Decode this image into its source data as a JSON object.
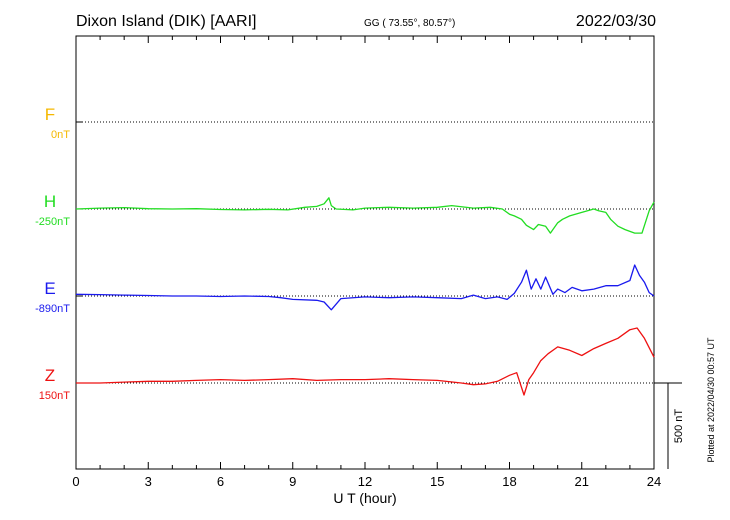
{
  "header": {
    "station": "Dixon Island (DIK)  [AARI]",
    "coords": "GG ( 73.55°,  80.57°)",
    "date": "2022/03/30"
  },
  "footer": {
    "plotted": "Plotted at 2022/04/30 00:57 UT"
  },
  "chart_data": {
    "type": "line",
    "xlabel": "U T (hour)",
    "xlim": [
      0,
      24
    ],
    "x_ticks": [
      "0",
      "3",
      "6",
      "9",
      "12",
      "15",
      "18",
      "21",
      "24"
    ],
    "scale_bar": {
      "label": "500 nT",
      "value_nT": 500
    },
    "series": [
      {
        "name": "F",
        "baseline_label": "0nT",
        "color": "#f5b800",
        "x": [],
        "values": []
      },
      {
        "name": "H",
        "baseline_label": "-250nT",
        "color": "#22dd22",
        "x": [
          0,
          1,
          2,
          3,
          4,
          5,
          6,
          7,
          8,
          8.8,
          9.5,
          10,
          10.3,
          10.5,
          10.6,
          10.8,
          11.5,
          12,
          13,
          14,
          15,
          15.6,
          16.5,
          17.2,
          17.7,
          18,
          18.2,
          18.5,
          18.7,
          19,
          19.2,
          19.5,
          19.7,
          20,
          20.2,
          20.5,
          21,
          21.5,
          21.7,
          22,
          22.2,
          22.5,
          22.8,
          23,
          23.2,
          23.5,
          23.8,
          24
        ],
        "values": [
          0,
          5,
          8,
          2,
          0,
          2,
          -3,
          -5,
          -2,
          -5,
          10,
          15,
          30,
          65,
          20,
          0,
          -5,
          5,
          10,
          5,
          10,
          20,
          5,
          10,
          0,
          -30,
          -40,
          -60,
          -95,
          -120,
          -90,
          -100,
          -140,
          -80,
          -60,
          -40,
          -20,
          0,
          -10,
          -20,
          -60,
          -100,
          -120,
          -130,
          -140,
          -140,
          -10,
          40
        ]
      },
      {
        "name": "E",
        "baseline_label": "-890nT",
        "color": "#1a1aee",
        "x": [
          0,
          1,
          2,
          3,
          4,
          5,
          6,
          7,
          8,
          8.5,
          9,
          10,
          10.3,
          10.6,
          11,
          12,
          13,
          14,
          15,
          16,
          16.5,
          17,
          17.5,
          17.9,
          18.2,
          18.5,
          18.7,
          18.9,
          19.1,
          19.3,
          19.5,
          19.8,
          20,
          20.3,
          20.6,
          21,
          21.5,
          22,
          22.5,
          23,
          23.2,
          23.4,
          23.6,
          23.8,
          24
        ],
        "values": [
          10,
          8,
          5,
          3,
          0,
          0,
          -3,
          0,
          -3,
          -10,
          -20,
          -25,
          -35,
          -80,
          -15,
          -5,
          -10,
          -5,
          -10,
          -15,
          5,
          -15,
          -5,
          -20,
          15,
          80,
          150,
          40,
          100,
          40,
          110,
          10,
          40,
          20,
          50,
          30,
          40,
          60,
          60,
          90,
          180,
          120,
          80,
          20,
          0
        ]
      },
      {
        "name": "Z",
        "baseline_label": "150nT",
        "color": "#ee1111",
        "x": [
          0,
          1,
          2,
          3,
          4,
          5,
          6,
          7,
          8,
          9,
          10,
          11,
          12,
          13,
          14,
          15,
          16,
          16.5,
          17,
          17.5,
          18,
          18.3,
          18.6,
          18.8,
          19,
          19.3,
          19.6,
          20,
          20.5,
          21,
          21.5,
          22,
          22.5,
          23,
          23.3,
          23.6,
          24
        ],
        "values": [
          0,
          0,
          5,
          10,
          10,
          15,
          20,
          15,
          20,
          25,
          15,
          20,
          20,
          25,
          20,
          15,
          0,
          -10,
          -5,
          10,
          45,
          60,
          -70,
          20,
          60,
          130,
          170,
          210,
          190,
          160,
          200,
          230,
          260,
          310,
          320,
          260,
          150
        ]
      }
    ]
  }
}
